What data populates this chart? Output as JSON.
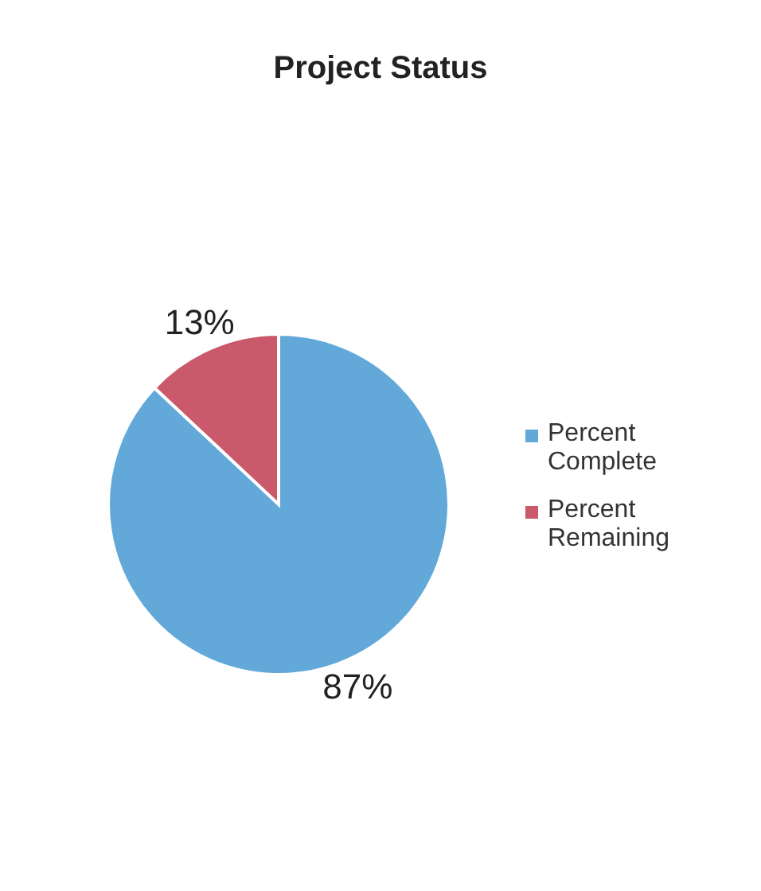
{
  "chart_data": {
    "type": "pie",
    "title": "Project Status",
    "categories": [
      "Percent Complete",
      "Percent Remaining"
    ],
    "values": [
      87,
      13
    ],
    "colors": [
      "#62a8d9",
      "#c9596b"
    ],
    "value_labels": [
      "87%",
      "13%"
    ],
    "legend": "right"
  }
}
